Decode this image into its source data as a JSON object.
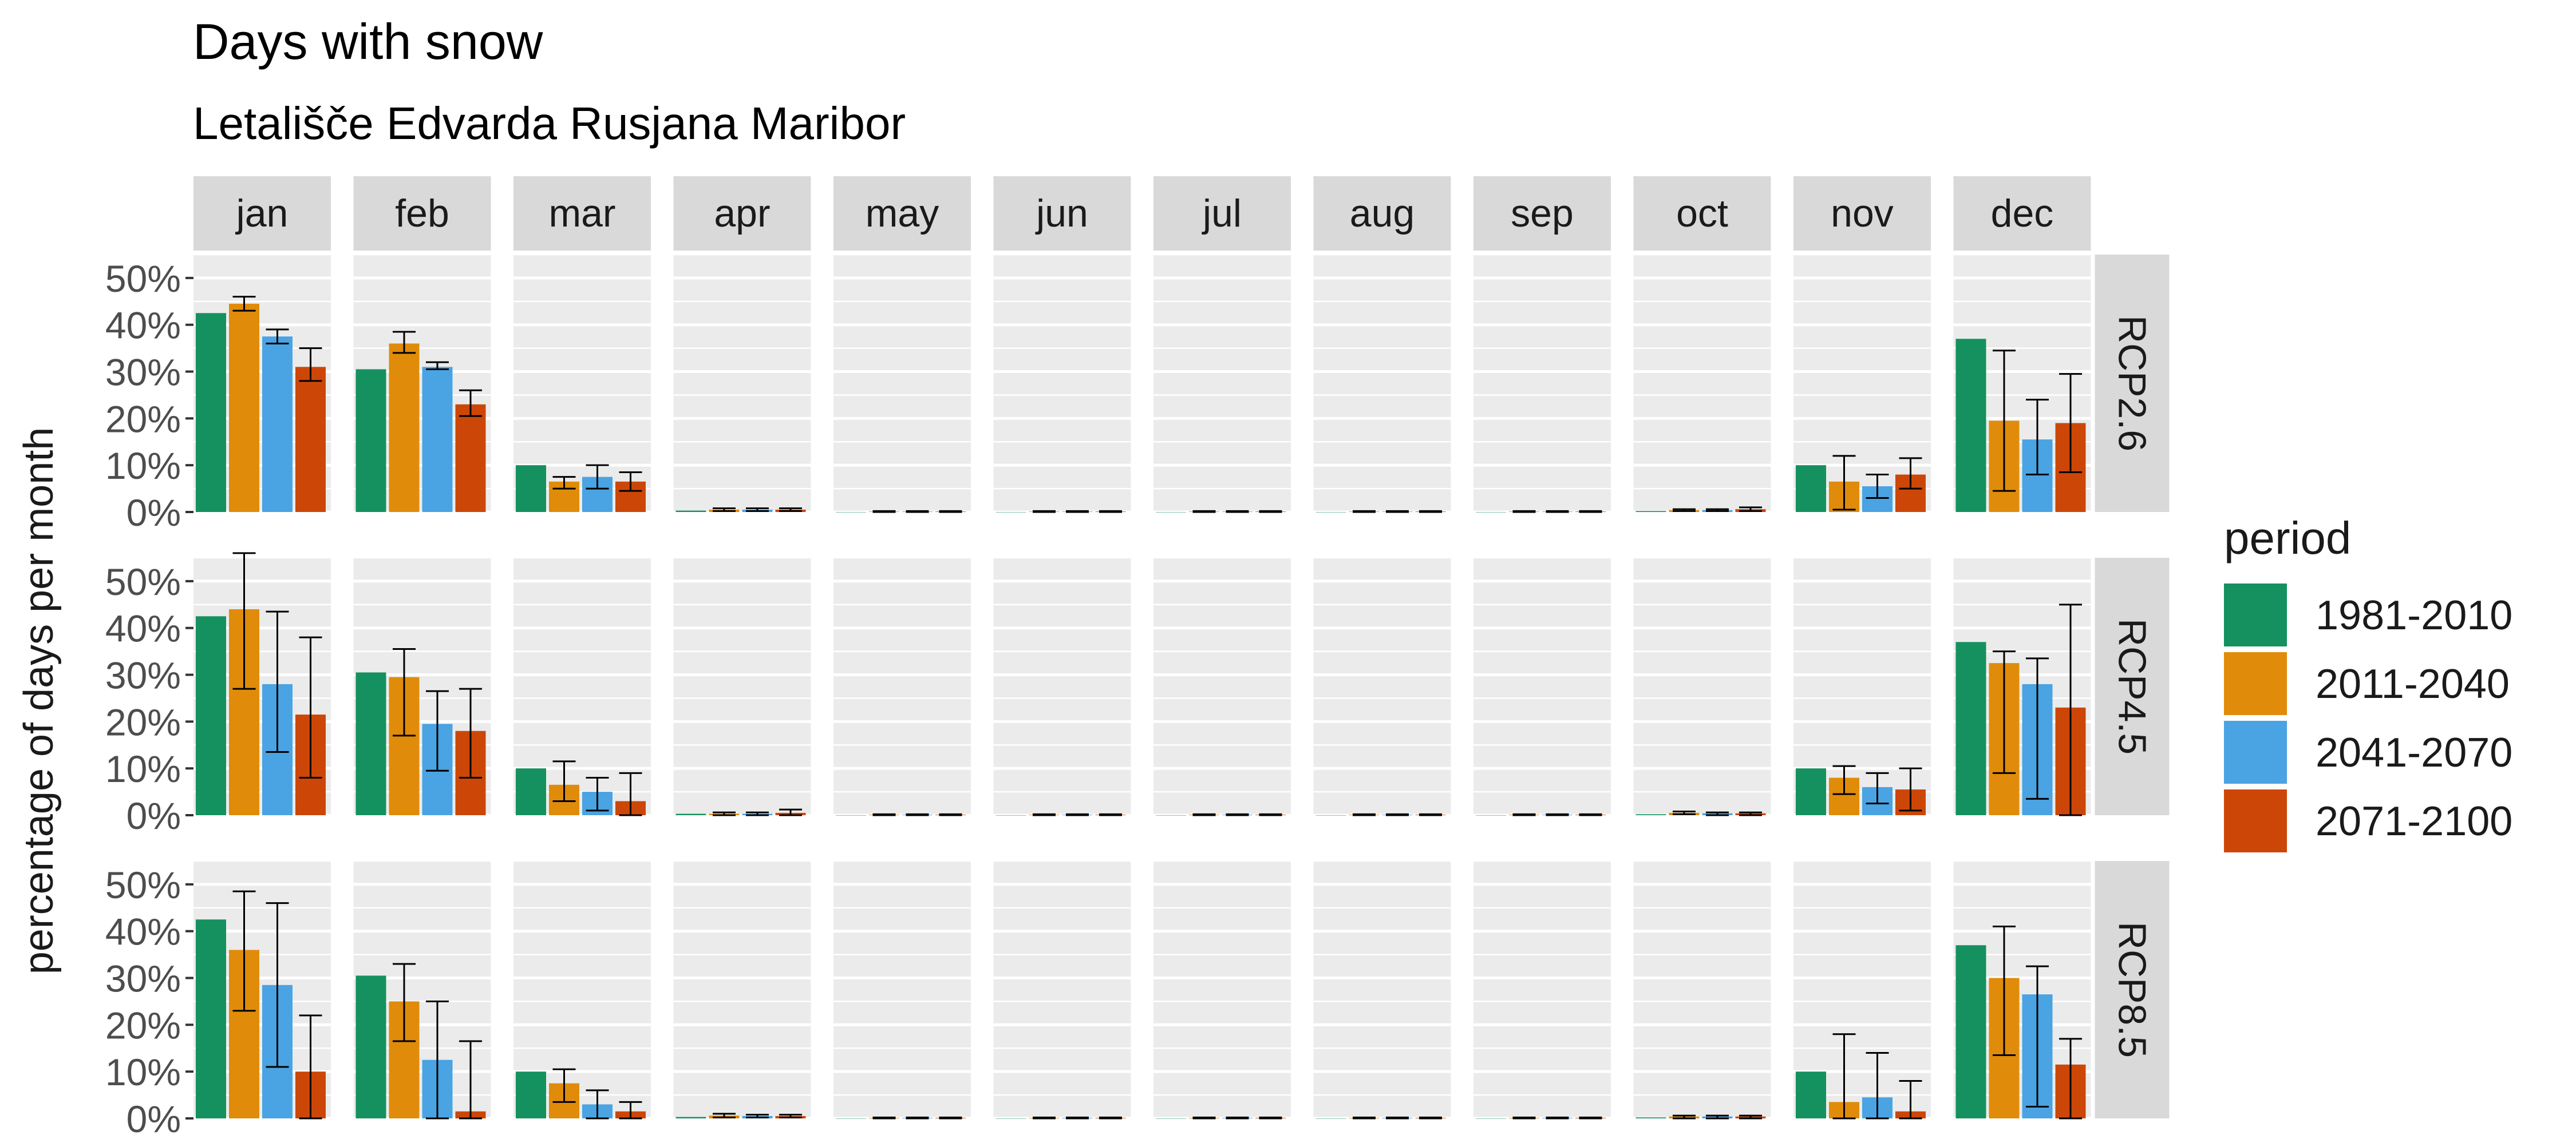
{
  "chart_data": {
    "type": "bar",
    "title": "Days with snow",
    "subtitle": "Letališče Edvarda Rusjana Maribor",
    "xlabel": "",
    "ylabel": "percentage of days per month",
    "y_unit": "%",
    "ylim": [
      0,
      55
    ],
    "y_ticks": [
      "0%",
      "10%",
      "20%",
      "30%",
      "40%",
      "50%"
    ],
    "grid": true,
    "legend_position": "right",
    "legend_title": "period",
    "colors": {
      "1981-2010": "#14915f",
      "2011-2040": "#e08c0a",
      "2041-2070": "#4aa3e2",
      "2071-2100": "#cc4707",
      "panel_bg": "#ebebeb",
      "strip_bg": "#d9d9d9"
    },
    "months": [
      "jan",
      "feb",
      "mar",
      "apr",
      "may",
      "jun",
      "jul",
      "aug",
      "sep",
      "oct",
      "nov",
      "dec"
    ],
    "periods": [
      "1981-2010",
      "2011-2040",
      "2041-2070",
      "2071-2100"
    ],
    "scenarios": [
      {
        "name": "RCP2.6",
        "values": [
          [
            42.5,
            44.5,
            37.5,
            31.0
          ],
          [
            30.5,
            36.0,
            31.0,
            23.0
          ],
          [
            10.0,
            6.5,
            7.5,
            6.5
          ],
          [
            0.3,
            0.5,
            0.5,
            0.5
          ],
          [
            0.0,
            0.1,
            0.1,
            0.1
          ],
          [
            0.0,
            0.1,
            0.1,
            0.1
          ],
          [
            0.0,
            0.1,
            0.1,
            0.1
          ],
          [
            0.0,
            0.1,
            0.1,
            0.1
          ],
          [
            0.0,
            0.1,
            0.1,
            0.1
          ],
          [
            0.2,
            0.4,
            0.4,
            0.6
          ],
          [
            10.0,
            6.5,
            5.5,
            8.0
          ],
          [
            37.0,
            19.5,
            15.5,
            19.0
          ]
        ],
        "errors": [
          [
            null,
            [
              43,
              46
            ],
            [
              36,
              39
            ],
            [
              28,
              35
            ]
          ],
          [
            null,
            [
              34,
              38.5
            ],
            [
              30.5,
              32
            ],
            [
              20.5,
              26
            ]
          ],
          [
            null,
            [
              5,
              7.5
            ],
            [
              5,
              10
            ],
            [
              4.5,
              8.5
            ]
          ],
          [
            null,
            [
              0.2,
              0.8
            ],
            [
              0.2,
              0.8
            ],
            [
              0.2,
              0.8
            ]
          ],
          [
            null,
            [
              0,
              0.2
            ],
            [
              0,
              0.2
            ],
            [
              0,
              0.2
            ]
          ],
          [
            null,
            [
              0,
              0.2
            ],
            [
              0,
              0.2
            ],
            [
              0,
              0.2
            ]
          ],
          [
            null,
            [
              0,
              0.2
            ],
            [
              0,
              0.2
            ],
            [
              0,
              0.2
            ]
          ],
          [
            null,
            [
              0,
              0.2
            ],
            [
              0,
              0.2
            ],
            [
              0,
              0.2
            ]
          ],
          [
            null,
            [
              0,
              0.2
            ],
            [
              0,
              0.2
            ],
            [
              0,
              0.2
            ]
          ],
          [
            null,
            [
              0.2,
              0.6
            ],
            [
              0.2,
              0.6
            ],
            [
              0.2,
              1.0
            ]
          ],
          [
            null,
            [
              0.5,
              12
            ],
            [
              3,
              8
            ],
            [
              5,
              11.5
            ]
          ],
          [
            null,
            [
              4.5,
              34.5
            ],
            [
              8,
              24
            ],
            [
              8.5,
              29.5
            ]
          ]
        ]
      },
      {
        "name": "RCP4.5",
        "values": [
          [
            42.5,
            44.0,
            28.0,
            21.5
          ],
          [
            30.5,
            29.5,
            19.5,
            18.0
          ],
          [
            10.0,
            6.5,
            5.0,
            3.0
          ],
          [
            0.3,
            0.3,
            0.3,
            0.5
          ],
          [
            0.0,
            0.1,
            0.1,
            0.1
          ],
          [
            0.0,
            0.1,
            0.1,
            0.1
          ],
          [
            0.0,
            0.1,
            0.1,
            0.1
          ],
          [
            0.0,
            0.1,
            0.1,
            0.1
          ],
          [
            0.0,
            0.1,
            0.1,
            0.1
          ],
          [
            0.2,
            0.5,
            0.4,
            0.4
          ],
          [
            10.0,
            8.0,
            6.0,
            5.5
          ],
          [
            37.0,
            32.5,
            28.0,
            23.0
          ]
        ],
        "errors": [
          [
            null,
            [
              27,
              56
            ],
            [
              13.5,
              43.5
            ],
            [
              8,
              38
            ]
          ],
          [
            null,
            [
              17,
              35.5
            ],
            [
              9.5,
              26.5
            ],
            [
              8,
              27
            ]
          ],
          [
            null,
            [
              3,
              11.5
            ],
            [
              1,
              8
            ],
            [
              0,
              9
            ]
          ],
          [
            null,
            [
              0,
              0.6
            ],
            [
              0,
              0.6
            ],
            [
              0,
              1.2
            ]
          ],
          [
            null,
            [
              0,
              0.2
            ],
            [
              0,
              0.2
            ],
            [
              0,
              0.2
            ]
          ],
          [
            null,
            [
              0,
              0.2
            ],
            [
              0,
              0.2
            ],
            [
              0,
              0.2
            ]
          ],
          [
            null,
            [
              0,
              0.2
            ],
            [
              0,
              0.2
            ],
            [
              0,
              0.2
            ]
          ],
          [
            null,
            [
              0,
              0.2
            ],
            [
              0,
              0.2
            ],
            [
              0,
              0.2
            ]
          ],
          [
            null,
            [
              0,
              0.2
            ],
            [
              0,
              0.2
            ],
            [
              0,
              0.2
            ]
          ],
          [
            null,
            [
              0.2,
              0.8
            ],
            [
              0,
              0.6
            ],
            [
              0,
              0.6
            ]
          ],
          [
            null,
            [
              4.5,
              10.5
            ],
            [
              2.5,
              9
            ],
            [
              1,
              10
            ]
          ],
          [
            null,
            [
              9,
              35
            ],
            [
              3.5,
              33.5
            ],
            [
              0,
              45
            ]
          ]
        ]
      },
      {
        "name": "RCP8.5",
        "values": [
          [
            42.5,
            36.0,
            28.5,
            10.0
          ],
          [
            30.5,
            25.0,
            12.5,
            1.5
          ],
          [
            10.0,
            7.5,
            3.0,
            1.5
          ],
          [
            0.3,
            0.6,
            0.5,
            0.5
          ],
          [
            0.0,
            0.1,
            0.1,
            0.1
          ],
          [
            0.0,
            0.1,
            0.1,
            0.1
          ],
          [
            0.0,
            0.1,
            0.1,
            0.1
          ],
          [
            0.0,
            0.1,
            0.1,
            0.1
          ],
          [
            0.0,
            0.1,
            0.1,
            0.1
          ],
          [
            0.2,
            0.4,
            0.4,
            0.4
          ],
          [
            10.0,
            3.5,
            4.5,
            1.5
          ],
          [
            37.0,
            30.0,
            26.5,
            11.5
          ]
        ],
        "errors": [
          [
            null,
            [
              23,
              48.5
            ],
            [
              11,
              46
            ],
            [
              0,
              22
            ]
          ],
          [
            null,
            [
              16.5,
              33
            ],
            [
              0,
              25
            ],
            [
              0,
              16.5
            ]
          ],
          [
            null,
            [
              3.5,
              10.5
            ],
            [
              0,
              6
            ],
            [
              0,
              3.5
            ]
          ],
          [
            null,
            [
              0.2,
              1.0
            ],
            [
              0.2,
              0.8
            ],
            [
              0.2,
              0.8
            ]
          ],
          [
            null,
            [
              0,
              0.2
            ],
            [
              0,
              0.2
            ],
            [
              0,
              0.2
            ]
          ],
          [
            null,
            [
              0,
              0.2
            ],
            [
              0,
              0.2
            ],
            [
              0,
              0.2
            ]
          ],
          [
            null,
            [
              0,
              0.2
            ],
            [
              0,
              0.2
            ],
            [
              0,
              0.2
            ]
          ],
          [
            null,
            [
              0,
              0.2
            ],
            [
              0,
              0.2
            ],
            [
              0,
              0.2
            ]
          ],
          [
            null,
            [
              0,
              0.2
            ],
            [
              0,
              0.2
            ],
            [
              0,
              0.2
            ]
          ],
          [
            null,
            [
              0,
              0.6
            ],
            [
              0,
              0.6
            ],
            [
              0,
              0.6
            ]
          ],
          [
            null,
            [
              0,
              18
            ],
            [
              0,
              14
            ],
            [
              0,
              8
            ]
          ],
          [
            null,
            [
              13.5,
              41
            ],
            [
              2.5,
              32.5
            ],
            [
              0,
              17
            ]
          ]
        ]
      }
    ]
  }
}
